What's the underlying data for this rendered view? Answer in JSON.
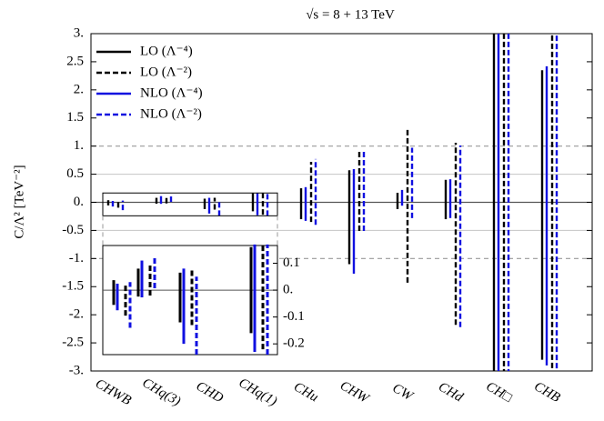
{
  "chart_data": {
    "type": "interval",
    "title": "√s = 8 + 13 TeV",
    "y_label": "C/Λ²   [TeV⁻²]",
    "categories": [
      "CHWB",
      "CHq(3)",
      "CHD",
      "CHq(1)",
      "CHu",
      "CHW",
      "CW",
      "CHd",
      "CH□",
      "CHB"
    ],
    "series": [
      {
        "name": "LO (Λ⁻⁴)",
        "color": "#000000",
        "dashed": false,
        "low": [
          -0.055,
          -0.024,
          -0.12,
          -0.16,
          -0.3,
          -1.1,
          -0.12,
          -0.3,
          -3.5,
          -2.8
        ],
        "high": [
          0.037,
          0.08,
          0.065,
          0.16,
          0.25,
          0.57,
          0.17,
          0.4,
          3.5,
          2.35
        ]
      },
      {
        "name": "LO (Λ⁻²)",
        "color": "#000000",
        "dashed": true,
        "low": [
          -0.095,
          -0.02,
          -0.13,
          -0.22,
          -0.35,
          -0.51,
          -1.43,
          -2.18,
          -3.5,
          -2.95
        ],
        "high": [
          0.027,
          0.095,
          0.08,
          0.17,
          0.72,
          0.92,
          1.3,
          1.06,
          3.5,
          3.1
        ]
      },
      {
        "name": "NLO (Λ⁻⁴)",
        "color": "#1010e0",
        "dashed": false,
        "low": [
          -0.075,
          -0.027,
          -0.2,
          -0.23,
          -0.33,
          -1.27,
          -0.06,
          -0.28,
          -3.5,
          -2.9
        ],
        "high": [
          0.024,
          0.11,
          0.08,
          0.17,
          0.27,
          0.59,
          0.22,
          0.41,
          3.5,
          2.42
        ]
      },
      {
        "name": "NLO (Λ⁻²)",
        "color": "#1010e0",
        "dashed": true,
        "low": [
          -0.14,
          0.007,
          -0.24,
          -0.24,
          -0.4,
          -0.51,
          -0.28,
          -2.22,
          -3.5,
          -3.1
        ],
        "high": [
          0.03,
          0.125,
          0.05,
          0.17,
          0.77,
          0.93,
          0.97,
          1.01,
          3.5,
          3.2
        ]
      }
    ],
    "ylim": [
      -3,
      3
    ],
    "yticks": [
      {
        "value": 3,
        "label": "3."
      },
      2.5,
      {
        "value": 2,
        "label": "2."
      },
      1.5,
      {
        "value": 1,
        "label": "1."
      },
      0.5,
      {
        "value": 0,
        "label": "0."
      },
      -0.5,
      {
        "value": -1,
        "label": "-1."
      },
      -1.5,
      {
        "value": -2,
        "label": "-2."
      },
      -2.5,
      {
        "value": -3,
        "label": "-3."
      }
    ],
    "reference_lines": [
      {
        "value": 1,
        "color": "#999999",
        "dashed": true
      },
      {
        "value": -1,
        "color": "#999999",
        "dashed": true
      },
      {
        "value": 0.5,
        "color": "#cccccc",
        "dashed": false
      },
      {
        "value": -0.5,
        "color": "#cccccc",
        "dashed": false
      },
      {
        "value": 0,
        "color": "#555555",
        "dashed": false
      }
    ],
    "legend": "top-left",
    "inset": {
      "categories": [
        0,
        1,
        2,
        3
      ],
      "ylim": [
        -0.24,
        0.166
      ],
      "yticks": [
        0.1,
        {
          "value": 0,
          "label": "0."
        },
        -0.1,
        -0.2
      ]
    }
  }
}
